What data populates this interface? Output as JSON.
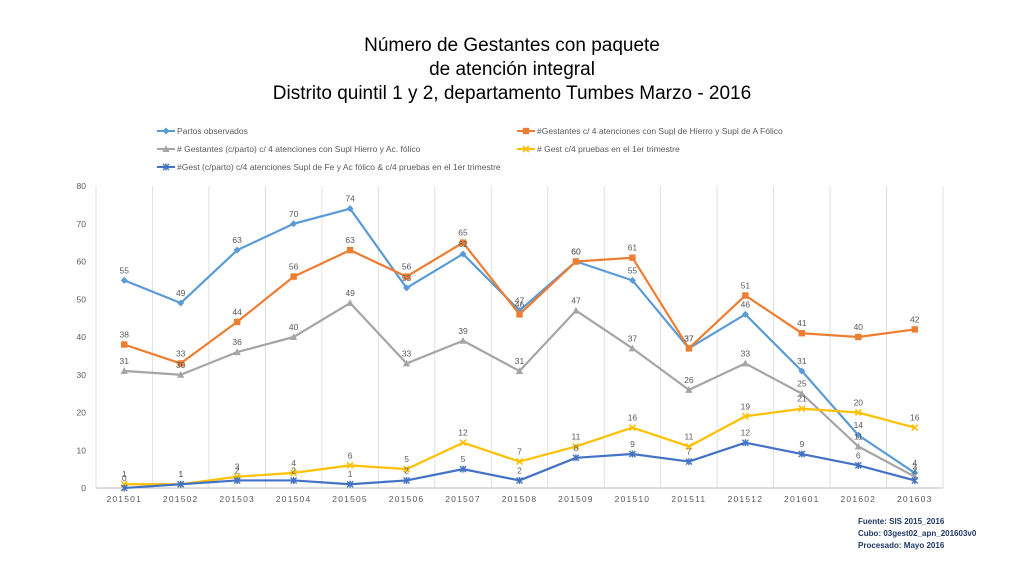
{
  "title": {
    "line1": "Número de Gestantes con paquete",
    "line2": "de atención integral",
    "line3": "Distrito quintil 1 y 2, departamento Tumbes Marzo - 2016"
  },
  "source": {
    "line1": "Fuente: SIS 2015_2016",
    "line2": "Cubo: 03gest02_apn_201603v0",
    "line3": "Procesado: Mayo 2016"
  },
  "chart_data": {
    "type": "line",
    "categories": [
      "201501",
      "201502",
      "201503",
      "201504",
      "201505",
      "201506",
      "201507",
      "201508",
      "201509",
      "201510",
      "201511",
      "201512",
      "201601",
      "201602",
      "201603"
    ],
    "ylim": [
      0,
      80
    ],
    "yticks": [
      0,
      10,
      20,
      30,
      40,
      50,
      60,
      70,
      80
    ],
    "grid": "vertical",
    "legend_position": "top",
    "series": [
      {
        "name": "Partos observados",
        "color": "#5b9bd5",
        "marker": "diamond",
        "values": [
          55,
          49,
          63,
          70,
          74,
          53,
          62,
          47,
          60,
          55,
          37,
          46,
          31,
          14,
          4
        ]
      },
      {
        "name": "#Gestantes c/ 4 atenciones con Supl de Hierro y Supl de A Fólico",
        "color": "#ed7d31",
        "marker": "square",
        "values": [
          38,
          33,
          44,
          56,
          63,
          56,
          65,
          46,
          60,
          61,
          37,
          51,
          41,
          40,
          42
        ]
      },
      {
        "name": "# Gestantes (c/parto) c/ 4 atenciones con Supl Hierro y Ac. fólico",
        "color": "#a5a5a5",
        "marker": "triangle",
        "values": [
          31,
          30,
          36,
          40,
          49,
          33,
          39,
          31,
          47,
          37,
          26,
          33,
          25,
          11,
          3
        ]
      },
      {
        "name": "# Gest c/4 pruebas en el 1er trimestre",
        "color": "#ffc000",
        "marker": "x",
        "values": [
          1,
          1,
          3,
          4,
          6,
          5,
          12,
          7,
          11,
          16,
          11,
          19,
          21,
          20,
          16
        ]
      },
      {
        "name": "#Gest (c/parto) c/4 atenciones Supl de Fe y Ac fólico & c/4 pruebas en el 1er trimestre",
        "color": "#4472c4",
        "marker": "star",
        "values": [
          0,
          1,
          2,
          2,
          1,
          2,
          5,
          2,
          8,
          9,
          7,
          12,
          9,
          6,
          2
        ]
      }
    ]
  }
}
